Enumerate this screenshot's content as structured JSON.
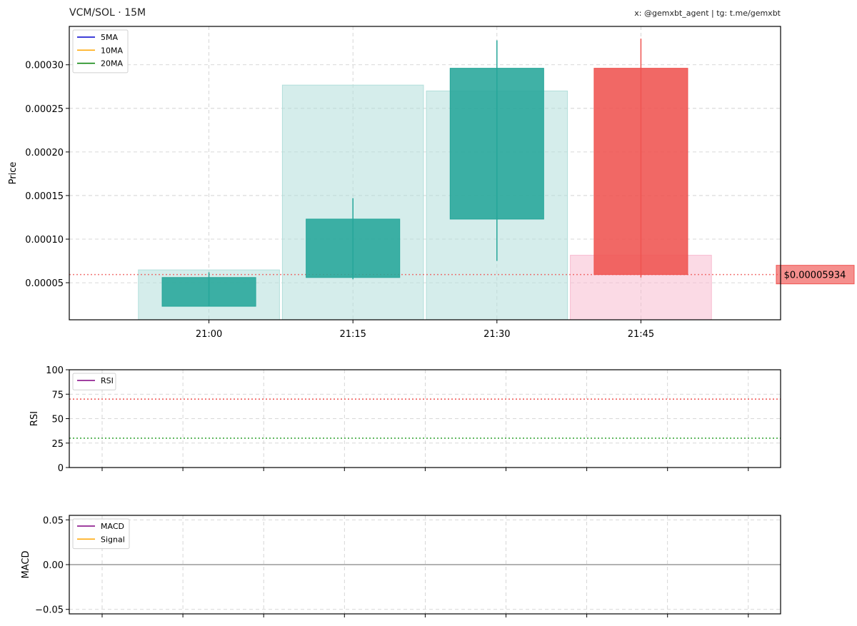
{
  "header": {
    "title": "VCM/SOL · 15M",
    "credit": "x: @gemxbt_agent | tg: t.me/gemxbt"
  },
  "colors": {
    "up": "#26a69a",
    "down": "#ef5350",
    "vol_up": "#b2dfdb",
    "vol_down": "#f8bbd0",
    "ma5": "#0000cc",
    "ma10": "#ffa500",
    "ma20": "#008000",
    "rsi": "#800080",
    "macd": "#800080",
    "signal": "#ffa500",
    "overbought": "#ef5350",
    "oversold": "#2ca02c",
    "zero_line": "#999999",
    "price_line": "#ef5350",
    "grid": "#cccccc"
  },
  "chart_data": [
    {
      "type": "candlestick",
      "ylabel": "Price",
      "ylim": [
        7.5e-06,
        0.000344
      ],
      "grid": true,
      "legend_position": "top-left",
      "legend": [
        "5MA",
        "10MA",
        "20MA"
      ],
      "y_ticks": [
        {
          "value": 5e-05,
          "label": "0.00005"
        },
        {
          "value": 0.0001,
          "label": "0.00010"
        },
        {
          "value": 0.00015,
          "label": "0.00015"
        },
        {
          "value": 0.0002,
          "label": "0.00020"
        },
        {
          "value": 0.00025,
          "label": "0.00025"
        },
        {
          "value": 0.0003,
          "label": "0.00030"
        }
      ],
      "x_ticks": [
        "21:00",
        "21:15",
        "21:30",
        "21:45"
      ],
      "xlim": [
        -0.97,
        3.97
      ],
      "candles": [
        {
          "time": "21:00",
          "open": 2.3e-05,
          "high": 6.2e-05,
          "low": 2.3e-05,
          "close": 5.6e-05
        },
        {
          "time": "21:15",
          "open": 5.6e-05,
          "high": 0.000147,
          "low": 5.4e-05,
          "close": 0.000123
        },
        {
          "time": "21:30",
          "open": 0.000123,
          "high": 0.000328,
          "low": 7.5e-05,
          "close": 0.000296
        },
        {
          "time": "21:45",
          "open": 0.000296,
          "high": 0.00033,
          "low": 5.6e-05,
          "close": 5.934e-05
        }
      ],
      "volume": [
        {
          "time": "21:00",
          "level": 0.17,
          "direction": "up"
        },
        {
          "time": "21:15",
          "level": 0.8,
          "direction": "up"
        },
        {
          "time": "21:30",
          "level": 0.78,
          "direction": "up"
        },
        {
          "time": "21:45",
          "level": 0.22,
          "direction": "down"
        }
      ],
      "last_price": 5.934e-05,
      "last_price_label": "$0.00005934"
    },
    {
      "type": "line",
      "ylabel": "RSI",
      "ylim": [
        0,
        100
      ],
      "grid": true,
      "legend_position": "top-left",
      "legend": [
        "RSI"
      ],
      "y_ticks": [
        {
          "value": 0,
          "label": "0"
        },
        {
          "value": 25,
          "label": "25"
        },
        {
          "value": 50,
          "label": "50"
        },
        {
          "value": 75,
          "label": "75"
        },
        {
          "value": 100,
          "label": "100"
        }
      ],
      "reference_lines": [
        {
          "value": 70,
          "kind": "overbought"
        },
        {
          "value": 30,
          "kind": "oversold"
        }
      ],
      "series": []
    },
    {
      "type": "line",
      "ylabel": "MACD",
      "ylim": [
        -0.055,
        0.055
      ],
      "grid": true,
      "legend_position": "top-left",
      "legend": [
        "MACD",
        "Signal"
      ],
      "y_ticks": [
        {
          "value": -0.05,
          "label": "−0.05"
        },
        {
          "value": 0,
          "label": "0.00"
        },
        {
          "value": 0.05,
          "label": "0.05"
        }
      ],
      "reference_lines": [
        {
          "value": 0,
          "kind": "zero"
        }
      ],
      "series": []
    }
  ]
}
